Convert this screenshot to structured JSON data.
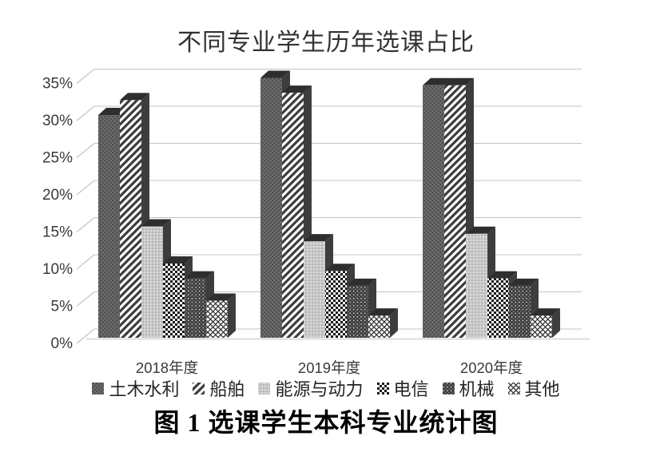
{
  "title": "不同专业学生历年选课占比",
  "caption": "图 1 选课学生本科专业统计图",
  "chart_data": {
    "type": "bar",
    "style": "3d-clustered-column-grayscale-patterns",
    "title": "不同专业学生历年选课占比",
    "xlabel": "",
    "ylabel": "",
    "categories": [
      "2018年度",
      "2019年度",
      "2020年度"
    ],
    "series": [
      {
        "name": "土木水利",
        "texture": "dense-dots-dark-gray",
        "values": [
          30,
          35,
          34
        ]
      },
      {
        "name": "船舶",
        "texture": "diagonal-stripes",
        "values": [
          32,
          33,
          34
        ]
      },
      {
        "name": "能源与动力",
        "texture": "fine-dots-light-gray",
        "values": [
          15,
          13,
          14
        ]
      },
      {
        "name": "电信",
        "texture": "checkerboard",
        "values": [
          10,
          9,
          8
        ]
      },
      {
        "name": "机械",
        "texture": "dark-speckle-weave",
        "values": [
          8,
          7,
          7
        ]
      },
      {
        "name": "其他",
        "texture": "diamond-lattice",
        "values": [
          5,
          3,
          3
        ]
      }
    ],
    "y_ticks": [
      "0%",
      "5%",
      "10%",
      "15%",
      "20%",
      "25%",
      "30%",
      "35%"
    ],
    "ylim": [
      0,
      35
    ],
    "grid": true,
    "legend_position": "bottom"
  },
  "colors": {
    "background": "#ffffff",
    "gridline": "#c4c4c4",
    "axis_text": "#3a3a3a",
    "bar_side": "#3d3d3d",
    "bar_top": "#2e2e2e"
  }
}
